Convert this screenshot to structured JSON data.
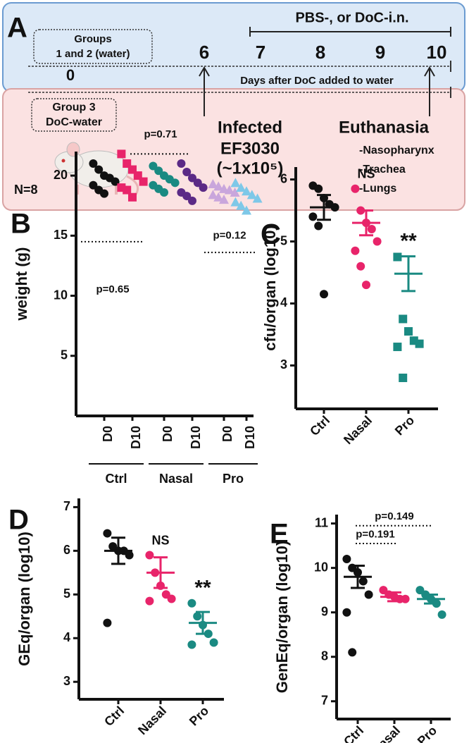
{
  "diagram": {
    "panel": "A",
    "header": "PBS-, or DoC-i.n.",
    "groups_water": [
      "Groups",
      "1 and 2 (water)"
    ],
    "days": [
      0,
      6,
      7,
      8,
      9,
      10
    ],
    "axis_label": "Days after DoC added to water",
    "group3": [
      "Group 3",
      "DoC-water"
    ],
    "infected": [
      "Infected",
      "EF3030",
      "(~1x10⁵)"
    ],
    "euthanasia": "Euthanasia",
    "organs": [
      "-Nasopharynx",
      "-Trachea",
      "-Lungs"
    ],
    "n": "N=8"
  },
  "chart_data": [
    {
      "type": "dot",
      "panel": "B",
      "ylabel": "weight (g)",
      "categories": [
        "D0",
        "D10",
        "D0",
        "D10",
        "D0",
        "D10"
      ],
      "groups": [
        "Ctrl",
        "Nasal",
        "Pro"
      ],
      "colors": [
        "#111111",
        "#e8246a",
        "#1a8a82",
        "#5b2a86",
        "#c9a6dc",
        "#7ec8e8"
      ],
      "markers": [
        "circle",
        "square",
        "circle",
        "circle",
        "triangle",
        "triangle"
      ],
      "points": [
        [
          21,
          20.5,
          20,
          19.8,
          19.5,
          19.2,
          18.8,
          18.5
        ],
        [
          21.8,
          21,
          20.5,
          20,
          19.5,
          19,
          18.8,
          18.2
        ],
        [
          20.8,
          20.4,
          20,
          19.7,
          19.4,
          19.2,
          18.9,
          18.6
        ],
        [
          21,
          20.3,
          19.8,
          19.4,
          19,
          18.6,
          18.3,
          17.9
        ],
        [
          19.3,
          19.1,
          18.9,
          18.8,
          18.6,
          18.4,
          18.2,
          18
        ],
        [
          19.4,
          19,
          18.7,
          18.4,
          18.1,
          17.8,
          17.5,
          17.1
        ]
      ],
      "annotations": [
        "p=0.65",
        "p=0.71",
        "p=0.12"
      ],
      "ylim": [
        0,
        22
      ],
      "yticks": [
        5,
        10,
        15,
        20
      ]
    },
    {
      "type": "dot",
      "panel": "C",
      "ylabel": "cfu/organ (log10)",
      "categories": [
        "Ctrl",
        "Nasal",
        "Pro"
      ],
      "colors": [
        "#111111",
        "#e8246a",
        "#1a8a82"
      ],
      "markers": [
        "circle",
        "circle",
        "square"
      ],
      "points": [
        [
          5.9,
          5.85,
          5.7,
          5.6,
          5.55,
          5.4,
          5.25,
          4.15
        ],
        [
          5.85,
          5.5,
          5.3,
          5.2,
          5.0,
          4.85,
          4.6,
          4.3
        ],
        [
          4.75,
          3.75,
          3.55,
          3.4,
          3.35,
          3.3,
          2.8
        ]
      ],
      "means": [
        5.55,
        5.3,
        4.48
      ],
      "errors": [
        0.2,
        0.2,
        0.28
      ],
      "annotations": [
        "NS",
        "**"
      ],
      "ylim": [
        2.3,
        6.2
      ],
      "yticks": [
        3,
        4,
        5,
        6
      ]
    },
    {
      "type": "dot",
      "panel": "D",
      "ylabel": "GEq/organ (log10)",
      "categories": [
        "Ctrl",
        "Nasal",
        "Pro"
      ],
      "colors": [
        "#111111",
        "#e8246a",
        "#1a8a82"
      ],
      "markers": [
        "circle",
        "circle",
        "circle"
      ],
      "points": [
        [
          6.4,
          6.1,
          6.0,
          6.0,
          5.9,
          4.35
        ],
        [
          5.9,
          5.5,
          5.2,
          5.0,
          4.9,
          4.85
        ],
        [
          4.8,
          4.5,
          4.3,
          4.1,
          3.9,
          3.85
        ]
      ],
      "means": [
        6.0,
        5.5,
        4.35
      ],
      "errors": [
        0.3,
        0.35,
        0.25
      ],
      "annotations": [
        "NS",
        "**"
      ],
      "ylim": [
        2.6,
        7.2
      ],
      "yticks": [
        3,
        4,
        5,
        6,
        7
      ]
    },
    {
      "type": "dot",
      "panel": "E",
      "ylabel": "GenEq/organ (log10)",
      "categories": [
        "Ctrl",
        "Nasal",
        "Pro"
      ],
      "colors": [
        "#111111",
        "#e8246a",
        "#1a8a82"
      ],
      "markers": [
        "circle",
        "circle",
        "circle"
      ],
      "points": [
        [
          10.2,
          10.0,
          9.9,
          9.7,
          9.4,
          9.0,
          8.1
        ],
        [
          9.5,
          9.4,
          9.35,
          9.3,
          9.3
        ],
        [
          9.5,
          9.4,
          9.3,
          9.2,
          8.95
        ]
      ],
      "means": [
        9.8,
        9.35,
        9.3
      ],
      "errors": [
        0.25,
        0.1,
        0.1
      ],
      "annotations": [
        "p=0.149",
        "p=0.191"
      ],
      "ylim": [
        6.6,
        11.2
      ],
      "yticks": [
        7,
        8,
        9,
        10,
        11
      ]
    }
  ]
}
